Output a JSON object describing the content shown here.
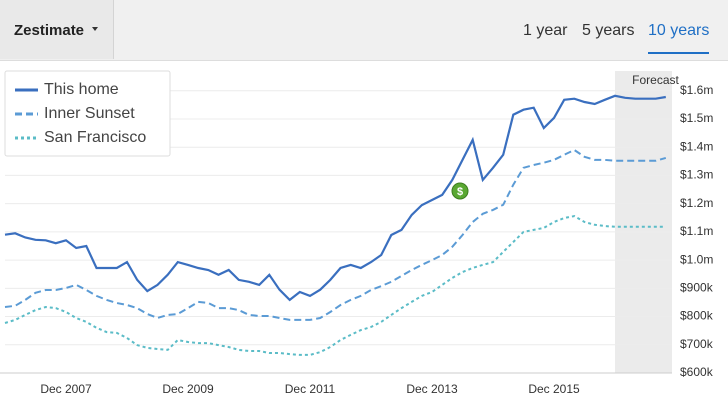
{
  "header": {
    "dropdown": "Zestimate",
    "tabs": [
      "1 year",
      "5 years",
      "10 years"
    ],
    "selected_tab": 2
  },
  "chart_data": {
    "type": "line",
    "categories": [
      null,
      null,
      null,
      null,
      null,
      null,
      "Dec 2007",
      null,
      null,
      null,
      null,
      null,
      null,
      null,
      null,
      null,
      null,
      null,
      "Dec 2009",
      null,
      null,
      null,
      null,
      null,
      null,
      null,
      null,
      null,
      null,
      null,
      "Dec 2011",
      null,
      null,
      null,
      null,
      null,
      null,
      null,
      null,
      null,
      null,
      null,
      "Dec 2013",
      null,
      null,
      null,
      null,
      null,
      null,
      null,
      null,
      null,
      null,
      null,
      "Dec 2015",
      null,
      null,
      null,
      null,
      null,
      null,
      null,
      null,
      null,
      null,
      null
    ],
    "series": [
      {
        "name": "This home",
        "color": "#3a6fbf",
        "dash": "solid",
        "values": [
          1090000,
          1095000,
          1080000,
          1072000,
          1070000,
          1060000,
          1070000,
          1043000,
          1050000,
          972000,
          972000,
          972000,
          993000,
          930000,
          890000,
          912000,
          948000,
          993000,
          983000,
          972000,
          965000,
          948000,
          965000,
          930000,
          923000,
          912000,
          948000,
          895000,
          859000,
          887000,
          873000,
          895000,
          930000,
          972000,
          983000,
          972000,
          993000,
          1018000,
          1089000,
          1107000,
          1160000,
          1195000,
          1213000,
          1231000,
          1284000,
          1355000,
          1426000,
          1284000,
          1327000,
          1373000,
          1515000,
          1533000,
          1540000,
          1468000,
          1504000,
          1568000,
          1572000,
          1560000,
          1553000,
          1568000,
          1582000,
          1575000,
          1572000,
          1572000,
          1572000,
          1578000
        ]
      },
      {
        "name": "Inner Sunset",
        "color": "#5b9bd5",
        "dash": "dashed",
        "values": [
          834000,
          838000,
          859000,
          884000,
          894000,
          894000,
          901000,
          912000,
          894000,
          873000,
          859000,
          848000,
          841000,
          830000,
          809000,
          795000,
          806000,
          809000,
          830000,
          852000,
          848000,
          830000,
          830000,
          823000,
          806000,
          802000,
          802000,
          795000,
          788000,
          788000,
          788000,
          795000,
          816000,
          841000,
          859000,
          873000,
          894000,
          908000,
          923000,
          944000,
          965000,
          983000,
          1000000,
          1018000,
          1047000,
          1089000,
          1135000,
          1164000,
          1178000,
          1196000,
          1267000,
          1327000,
          1337000,
          1345000,
          1355000,
          1373000,
          1390000,
          1366000,
          1355000,
          1355000,
          1352000,
          1352000,
          1352000,
          1352000,
          1352000,
          1362000
        ]
      },
      {
        "name": "San Francisco",
        "color": "#5bbcc7",
        "dash": "dotted",
        "values": [
          777000,
          788000,
          806000,
          823000,
          834000,
          830000,
          816000,
          795000,
          781000,
          760000,
          745000,
          742000,
          724000,
          699000,
          689000,
          685000,
          682000,
          717000,
          710000,
          706000,
          706000,
          699000,
          692000,
          682000,
          678000,
          678000,
          671000,
          671000,
          667000,
          664000,
          664000,
          674000,
          692000,
          717000,
          735000,
          752000,
          763000,
          781000,
          806000,
          830000,
          852000,
          873000,
          887000,
          912000,
          937000,
          958000,
          972000,
          983000,
          993000,
          1029000,
          1064000,
          1100000,
          1107000,
          1114000,
          1135000,
          1149000,
          1156000,
          1135000,
          1125000,
          1121000,
          1118000,
          1118000,
          1118000,
          1118000,
          1118000,
          1118000
        ]
      }
    ],
    "ylim": [
      600000,
      1670000
    ],
    "yticks": [
      {
        "value": 600000,
        "label": "$600k"
      },
      {
        "value": 700000,
        "label": "$700k"
      },
      {
        "value": 800000,
        "label": "$800k"
      },
      {
        "value": 900000,
        "label": "$900k"
      },
      {
        "value": 1000000,
        "label": "$1.0m"
      },
      {
        "value": 1100000,
        "label": "$1.1m"
      },
      {
        "value": 1200000,
        "label": "$1.2m"
      },
      {
        "value": 1300000,
        "label": "$1.3m"
      },
      {
        "value": 1400000,
        "label": "$1.4m"
      },
      {
        "value": 1500000,
        "label": "$1.5m"
      },
      {
        "value": 1600000,
        "label": "$1.6m"
      }
    ],
    "grid": true,
    "legend": "upper left",
    "forecast": {
      "label": "Forecast",
      "start_index": 60
    },
    "sale_icon": "$"
  }
}
